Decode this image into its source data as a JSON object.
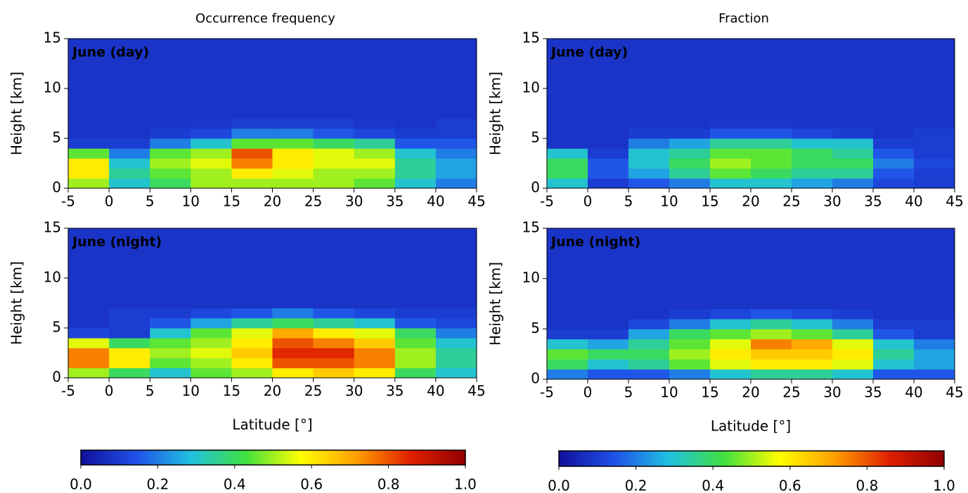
{
  "chart_data": [
    {
      "type": "heatmap",
      "title": "Occurrence frequency",
      "annotation": "June (day)",
      "ylabel": "Height [km]",
      "x": [
        -5,
        0,
        5,
        10,
        15,
        20,
        25,
        30,
        35,
        40,
        45
      ],
      "y": [
        0,
        1,
        2,
        3,
        4,
        5,
        6,
        7,
        15
      ],
      "z": [
        [
          0.5,
          0.3,
          0.4,
          0.5,
          0.5,
          0.5,
          0.5,
          0.45,
          0.3,
          0.2
        ],
        [
          0.6,
          0.35,
          0.45,
          0.5,
          0.6,
          0.55,
          0.5,
          0.5,
          0.35,
          0.25
        ],
        [
          0.6,
          0.3,
          0.5,
          0.55,
          0.75,
          0.6,
          0.55,
          0.55,
          0.35,
          0.25
        ],
        [
          0.45,
          0.2,
          0.45,
          0.5,
          0.8,
          0.6,
          0.55,
          0.5,
          0.3,
          0.2
        ],
        [
          0.1,
          0.1,
          0.2,
          0.3,
          0.45,
          0.45,
          0.4,
          0.35,
          0.15,
          0.15
        ],
        [
          0.08,
          0.08,
          0.1,
          0.12,
          0.2,
          0.2,
          0.15,
          0.12,
          0.1,
          0.1
        ],
        [
          0.08,
          0.08,
          0.08,
          0.09,
          0.1,
          0.1,
          0.1,
          0.09,
          0.08,
          0.1
        ],
        [
          0.08,
          0.08,
          0.08,
          0.08,
          0.08,
          0.08,
          0.08,
          0.08,
          0.08,
          0.08
        ]
      ],
      "xlim": [
        -5,
        45
      ],
      "ylim": [
        0,
        15
      ],
      "xticks": [
        -5,
        0,
        5,
        10,
        15,
        20,
        25,
        30,
        35,
        40,
        45
      ],
      "yticks": [
        0,
        5,
        10,
        15
      ],
      "zlim": [
        0,
        1
      ],
      "colormap": [
        "#10109a",
        "#2050e8",
        "#20c0e0",
        "#40e040",
        "#ffff00",
        "#ffa000",
        "#e02000",
        "#900000"
      ]
    },
    {
      "type": "heatmap",
      "annotation": "June (night)",
      "ylabel": "Height [km]",
      "xlabel": "Latitude [°]",
      "x": [
        -5,
        0,
        5,
        10,
        15,
        20,
        25,
        30,
        35,
        40,
        45
      ],
      "y": [
        0,
        1,
        2,
        3,
        4,
        5,
        6,
        7,
        15
      ],
      "z": [
        [
          0.5,
          0.4,
          0.3,
          0.45,
          0.5,
          0.6,
          0.65,
          0.6,
          0.4,
          0.3
        ],
        [
          0.75,
          0.6,
          0.45,
          0.5,
          0.6,
          0.8,
          0.8,
          0.75,
          0.5,
          0.35
        ],
        [
          0.75,
          0.6,
          0.5,
          0.55,
          0.65,
          0.85,
          0.85,
          0.75,
          0.5,
          0.35
        ],
        [
          0.55,
          0.4,
          0.45,
          0.5,
          0.6,
          0.8,
          0.75,
          0.65,
          0.45,
          0.3
        ],
        [
          0.12,
          0.1,
          0.3,
          0.45,
          0.55,
          0.7,
          0.6,
          0.55,
          0.4,
          0.2
        ],
        [
          0.08,
          0.1,
          0.15,
          0.25,
          0.35,
          0.4,
          0.35,
          0.3,
          0.15,
          0.12
        ],
        [
          0.08,
          0.1,
          0.1,
          0.12,
          0.15,
          0.2,
          0.15,
          0.12,
          0.1,
          0.1
        ],
        [
          0.08,
          0.08,
          0.08,
          0.08,
          0.08,
          0.08,
          0.08,
          0.08,
          0.08,
          0.08
        ]
      ],
      "xlim": [
        -5,
        45
      ],
      "ylim": [
        0,
        15
      ],
      "xticks": [
        -5,
        0,
        5,
        10,
        15,
        20,
        25,
        30,
        35,
        40,
        45
      ],
      "yticks": [
        0,
        5,
        10,
        15
      ],
      "zlim": [
        0,
        1
      ],
      "colormap": [
        "#10109a",
        "#2050e8",
        "#20c0e0",
        "#40e040",
        "#ffff00",
        "#ffa000",
        "#e02000",
        "#900000"
      ],
      "colorbar_ticks": [
        {
          "value": 0,
          "label": "0.0"
        },
        {
          "value": 0.2,
          "label": "0.2"
        },
        {
          "value": 0.4,
          "label": "0.4"
        },
        {
          "value": 0.6,
          "label": "0.6"
        },
        {
          "value": 0.8,
          "label": "0.8"
        },
        {
          "value": 1,
          "label": "1.0"
        }
      ]
    },
    {
      "type": "heatmap",
      "title": "Fraction",
      "annotation": "June (day)",
      "ylabel": "Height [km]",
      "x": [
        -5,
        0,
        5,
        10,
        15,
        20,
        25,
        30,
        35,
        40,
        45
      ],
      "y": [
        0,
        1,
        2,
        3,
        4,
        5,
        6,
        7,
        15
      ],
      "z": [
        [
          0.3,
          0.1,
          0.15,
          0.2,
          0.3,
          0.3,
          0.25,
          0.2,
          0.12,
          0.1
        ],
        [
          0.4,
          0.15,
          0.25,
          0.35,
          0.45,
          0.4,
          0.35,
          0.35,
          0.15,
          0.1
        ],
        [
          0.4,
          0.15,
          0.3,
          0.4,
          0.5,
          0.45,
          0.4,
          0.4,
          0.2,
          0.12
        ],
        [
          0.3,
          0.1,
          0.3,
          0.35,
          0.45,
          0.45,
          0.4,
          0.35,
          0.15,
          0.1
        ],
        [
          0.08,
          0.08,
          0.2,
          0.25,
          0.35,
          0.35,
          0.3,
          0.3,
          0.1,
          0.1
        ],
        [
          0.08,
          0.08,
          0.1,
          0.1,
          0.15,
          0.15,
          0.12,
          0.1,
          0.08,
          0.1
        ],
        [
          0.08,
          0.08,
          0.08,
          0.08,
          0.09,
          0.09,
          0.08,
          0.08,
          0.08,
          0.08
        ],
        [
          0.08,
          0.08,
          0.08,
          0.08,
          0.08,
          0.08,
          0.08,
          0.08,
          0.08,
          0.08
        ]
      ],
      "xlim": [
        -5,
        45
      ],
      "ylim": [
        0,
        15
      ],
      "xticks": [
        -5,
        0,
        5,
        10,
        15,
        20,
        25,
        30,
        35,
        40,
        45
      ],
      "yticks": [
        0,
        5,
        10,
        15
      ],
      "zlim": [
        0,
        1
      ],
      "colormap": [
        "#10109a",
        "#2050e8",
        "#20c0e0",
        "#40e040",
        "#ffff00",
        "#ffa000",
        "#e02000",
        "#900000"
      ]
    },
    {
      "type": "heatmap",
      "annotation": "June (night)",
      "ylabel": "Height [km]",
      "xlabel": "Latitude [°]",
      "x": [
        -5,
        0,
        5,
        10,
        15,
        20,
        25,
        30,
        35,
        40,
        45
      ],
      "y": [
        0,
        1,
        2,
        3,
        4,
        5,
        6,
        7,
        15
      ],
      "z": [
        [
          0.2,
          0.15,
          0.15,
          0.2,
          0.3,
          0.35,
          0.35,
          0.3,
          0.15,
          0.15
        ],
        [
          0.4,
          0.3,
          0.35,
          0.45,
          0.55,
          0.6,
          0.6,
          0.55,
          0.3,
          0.25
        ],
        [
          0.45,
          0.4,
          0.4,
          0.5,
          0.6,
          0.65,
          0.65,
          0.6,
          0.35,
          0.25
        ],
        [
          0.3,
          0.25,
          0.35,
          0.45,
          0.55,
          0.75,
          0.7,
          0.55,
          0.3,
          0.2
        ],
        [
          0.1,
          0.1,
          0.25,
          0.4,
          0.45,
          0.5,
          0.45,
          0.35,
          0.15,
          0.1
        ],
        [
          0.08,
          0.08,
          0.12,
          0.2,
          0.3,
          0.35,
          0.3,
          0.2,
          0.1,
          0.1
        ],
        [
          0.08,
          0.08,
          0.08,
          0.1,
          0.12,
          0.15,
          0.12,
          0.1,
          0.08,
          0.08
        ],
        [
          0.08,
          0.08,
          0.08,
          0.08,
          0.08,
          0.08,
          0.08,
          0.08,
          0.08,
          0.08
        ]
      ],
      "xlim": [
        -5,
        45
      ],
      "ylim": [
        0,
        15
      ],
      "xticks": [
        -5,
        0,
        5,
        10,
        15,
        20,
        25,
        30,
        35,
        40,
        45
      ],
      "yticks": [
        0,
        5,
        10,
        15
      ],
      "zlim": [
        0,
        1
      ],
      "colormap": [
        "#10109a",
        "#2050e8",
        "#20c0e0",
        "#40e040",
        "#ffff00",
        "#ffa000",
        "#e02000",
        "#900000"
      ],
      "colorbar_ticks": [
        {
          "value": 0,
          "label": "0.0"
        },
        {
          "value": 0.2,
          "label": "0.2"
        },
        {
          "value": 0.4,
          "label": "0.4"
        },
        {
          "value": 0.6,
          "label": "0.6"
        },
        {
          "value": 0.8,
          "label": "0.8"
        },
        {
          "value": 1,
          "label": "1.0"
        }
      ]
    }
  ]
}
